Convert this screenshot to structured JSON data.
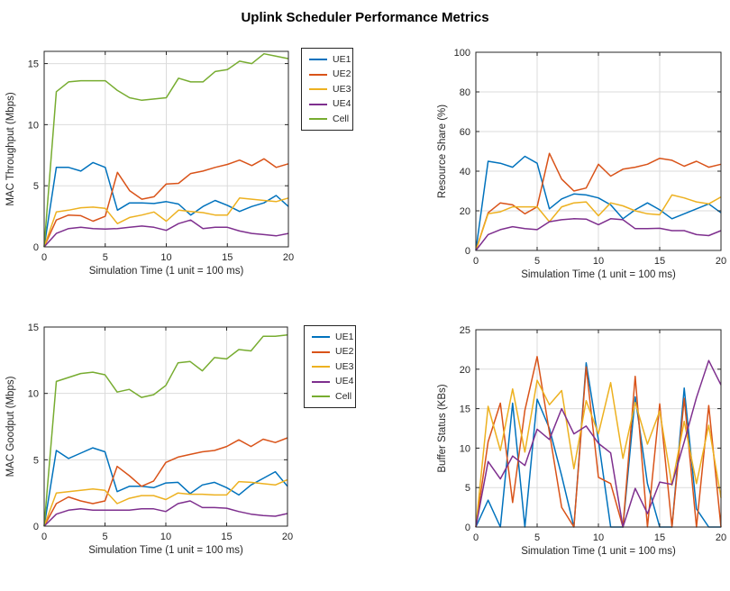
{
  "figure": {
    "title": "Uplink Scheduler Performance Metrics"
  },
  "palette": {
    "UE1": "#0072BD",
    "UE2": "#D95319",
    "UE3": "#EDB120",
    "UE4": "#7E2F8E",
    "Cell": "#77AC30",
    "grid": "#DBDBDB",
    "axis": "#262626",
    "text": "#262626",
    "background": "#FFFFFF"
  },
  "legend": {
    "entries": [
      "UE1",
      "UE2",
      "UE3",
      "UE4",
      "Cell"
    ]
  },
  "chart_data": [
    {
      "id": "mac-throughput",
      "type": "line",
      "title": "",
      "xlabel": "Simulation Time (1 unit = 100 ms)",
      "ylabel": "MAC Throughput (Mbps)",
      "xlim": [
        0,
        20
      ],
      "ylim": [
        0,
        16
      ],
      "xticks": [
        0,
        5,
        10,
        15,
        20
      ],
      "yticks": [
        0,
        5,
        10,
        15
      ],
      "grid": true,
      "legend_position": "right-of-plot",
      "x": [
        0,
        1,
        2,
        3,
        4,
        5,
        6,
        7,
        8,
        9,
        10,
        11,
        12,
        13,
        14,
        15,
        16,
        17,
        18,
        19,
        20
      ],
      "series": [
        {
          "name": "UE1",
          "values": [
            0,
            6.5,
            6.5,
            6.2,
            6.9,
            6.5,
            3.0,
            3.6,
            3.6,
            3.55,
            3.7,
            3.5,
            2.6,
            3.3,
            3.8,
            3.4,
            2.9,
            3.3,
            3.6,
            4.2,
            3.3
          ]
        },
        {
          "name": "UE2",
          "values": [
            0,
            2.2,
            2.6,
            2.55,
            2.1,
            2.5,
            6.1,
            4.6,
            3.9,
            4.1,
            5.15,
            5.2,
            6.0,
            6.2,
            6.5,
            6.75,
            7.1,
            6.65,
            7.2,
            6.5,
            6.8
          ]
        },
        {
          "name": "UE3",
          "values": [
            0,
            2.85,
            3.0,
            3.2,
            3.25,
            3.15,
            1.9,
            2.4,
            2.6,
            2.85,
            2.1,
            3.0,
            2.9,
            2.8,
            2.6,
            2.6,
            4.0,
            3.9,
            3.8,
            3.7,
            4.0
          ]
        },
        {
          "name": "UE4",
          "values": [
            0,
            1.1,
            1.5,
            1.6,
            1.5,
            1.45,
            1.5,
            1.6,
            1.7,
            1.6,
            1.35,
            1.9,
            2.2,
            1.5,
            1.6,
            1.6,
            1.3,
            1.1,
            1.0,
            0.9,
            1.1
          ]
        },
        {
          "name": "Cell",
          "values": [
            0,
            12.7,
            13.5,
            13.6,
            13.6,
            13.6,
            12.8,
            12.2,
            12.0,
            12.1,
            12.2,
            13.8,
            13.5,
            13.5,
            14.35,
            14.5,
            15.2,
            15.0,
            15.8,
            15.6,
            15.4
          ]
        }
      ]
    },
    {
      "id": "resource-share",
      "type": "line",
      "title": "",
      "xlabel": "Simulation Time (1 unit = 100 ms)",
      "ylabel": "Resource Share (%)",
      "xlim": [
        0,
        20
      ],
      "ylim": [
        0,
        100
      ],
      "xticks": [
        0,
        5,
        10,
        15,
        20
      ],
      "yticks": [
        0,
        20,
        40,
        60,
        80,
        100
      ],
      "grid": true,
      "legend_position": "none",
      "x": [
        0,
        1,
        2,
        3,
        4,
        5,
        6,
        7,
        8,
        9,
        10,
        11,
        12,
        13,
        14,
        15,
        16,
        17,
        18,
        19,
        20
      ],
      "series": [
        {
          "name": "UE1",
          "values": [
            0,
            45,
            44,
            42,
            47.5,
            44,
            21,
            26,
            28.5,
            28,
            26.5,
            23,
            16,
            20.5,
            24,
            20.5,
            16,
            18.5,
            21,
            23.5,
            19
          ]
        },
        {
          "name": "UE2",
          "values": [
            0,
            19,
            24,
            23,
            18.5,
            22,
            49,
            36,
            30,
            31.5,
            43.5,
            37.5,
            41,
            42,
            43.5,
            46.5,
            45.5,
            42.5,
            45,
            42,
            43.5
          ]
        },
        {
          "name": "UE3",
          "values": [
            0,
            18.5,
            19.5,
            22,
            22,
            22,
            14.5,
            22,
            24,
            24.5,
            17.5,
            24,
            22.5,
            20,
            18.5,
            18,
            28,
            26.5,
            24.5,
            23.5,
            27
          ]
        },
        {
          "name": "UE4",
          "values": [
            0,
            8,
            10.5,
            12,
            11,
            10.5,
            14.5,
            15.5,
            16,
            15.8,
            13,
            16,
            15.5,
            11,
            11,
            11.2,
            10,
            10,
            8,
            7.5,
            10
          ]
        }
      ]
    },
    {
      "id": "mac-goodput",
      "type": "line",
      "title": "",
      "xlabel": "Simulation Time (1 unit = 100 ms)",
      "ylabel": "MAC Goodput (Mbps)",
      "xlim": [
        0,
        20
      ],
      "ylim": [
        0,
        15
      ],
      "xticks": [
        0,
        5,
        10,
        15,
        20
      ],
      "yticks": [
        0,
        5,
        10,
        15
      ],
      "grid": true,
      "legend_position": "right-of-plot",
      "x": [
        0,
        1,
        2,
        3,
        4,
        5,
        6,
        7,
        8,
        9,
        10,
        11,
        12,
        13,
        14,
        15,
        16,
        17,
        18,
        19,
        20
      ],
      "series": [
        {
          "name": "UE1",
          "values": [
            0,
            5.7,
            5.1,
            5.5,
            5.9,
            5.6,
            2.6,
            3.0,
            3.0,
            2.9,
            3.25,
            3.3,
            2.45,
            3.1,
            3.3,
            2.9,
            2.35,
            3.1,
            3.6,
            4.1,
            3.0
          ]
        },
        {
          "name": "UE2",
          "values": [
            0,
            1.7,
            2.2,
            1.9,
            1.7,
            1.9,
            4.5,
            3.8,
            3.0,
            3.4,
            4.8,
            5.2,
            5.4,
            5.6,
            5.7,
            6.0,
            6.5,
            6.0,
            6.55,
            6.3,
            6.65
          ]
        },
        {
          "name": "UE3",
          "values": [
            0,
            2.5,
            2.6,
            2.7,
            2.8,
            2.7,
            1.7,
            2.1,
            2.3,
            2.3,
            2.0,
            2.5,
            2.4,
            2.4,
            2.35,
            2.35,
            3.35,
            3.3,
            3.2,
            3.1,
            3.5
          ]
        },
        {
          "name": "UE4",
          "values": [
            0,
            0.9,
            1.2,
            1.3,
            1.2,
            1.2,
            1.2,
            1.2,
            1.3,
            1.3,
            1.1,
            1.7,
            1.9,
            1.4,
            1.4,
            1.35,
            1.1,
            0.9,
            0.8,
            0.75,
            0.95
          ]
        },
        {
          "name": "Cell",
          "values": [
            0,
            10.9,
            11.2,
            11.5,
            11.6,
            11.4,
            10.1,
            10.3,
            9.7,
            9.9,
            10.6,
            12.3,
            12.4,
            11.7,
            12.7,
            12.6,
            13.3,
            13.2,
            14.3,
            14.3,
            14.4
          ]
        }
      ]
    },
    {
      "id": "buffer-status",
      "type": "line",
      "title": "",
      "xlabel": "Simulation Time (1 unit = 100 ms)",
      "ylabel": "Buffer Status (KBs)",
      "xlim": [
        0,
        20
      ],
      "ylim": [
        0,
        25
      ],
      "xticks": [
        0,
        5,
        10,
        15,
        20
      ],
      "yticks": [
        0,
        5,
        10,
        15,
        20,
        25
      ],
      "grid": true,
      "legend_position": "none",
      "x": [
        0,
        1,
        2,
        3,
        4,
        5,
        6,
        7,
        8,
        9,
        10,
        11,
        12,
        13,
        14,
        15,
        16,
        17,
        18,
        19,
        20
      ],
      "series": [
        {
          "name": "UE1",
          "values": [
            0,
            3.4,
            0,
            15.7,
            0,
            16.2,
            12.5,
            6.5,
            0,
            20.8,
            11,
            0,
            0,
            16.5,
            5.5,
            0,
            0,
            17.6,
            2.3,
            0,
            0
          ]
        },
        {
          "name": "UE2",
          "values": [
            0,
            10.8,
            15.7,
            3.1,
            14.8,
            21.6,
            12,
            2.5,
            0,
            20.3,
            6.3,
            5.5,
            0,
            19.1,
            0,
            15.6,
            0,
            16.3,
            0,
            15.4,
            0
          ]
        },
        {
          "name": "UE3",
          "values": [
            0,
            15.3,
            9.7,
            17.5,
            9.5,
            18.6,
            15.5,
            17.3,
            7.4,
            16.0,
            11.8,
            18.3,
            8.7,
            15.8,
            10.5,
            14.7,
            5.3,
            13.4,
            5.5,
            12.9,
            3.7
          ]
        },
        {
          "name": "UE4",
          "values": [
            0,
            8.3,
            6.1,
            9.0,
            7.8,
            12.4,
            11.1,
            15.0,
            11.8,
            12.8,
            10.6,
            9.4,
            0,
            4.9,
            1.7,
            5.7,
            5.4,
            10.8,
            16.4,
            21.1,
            18.0
          ]
        }
      ]
    }
  ]
}
